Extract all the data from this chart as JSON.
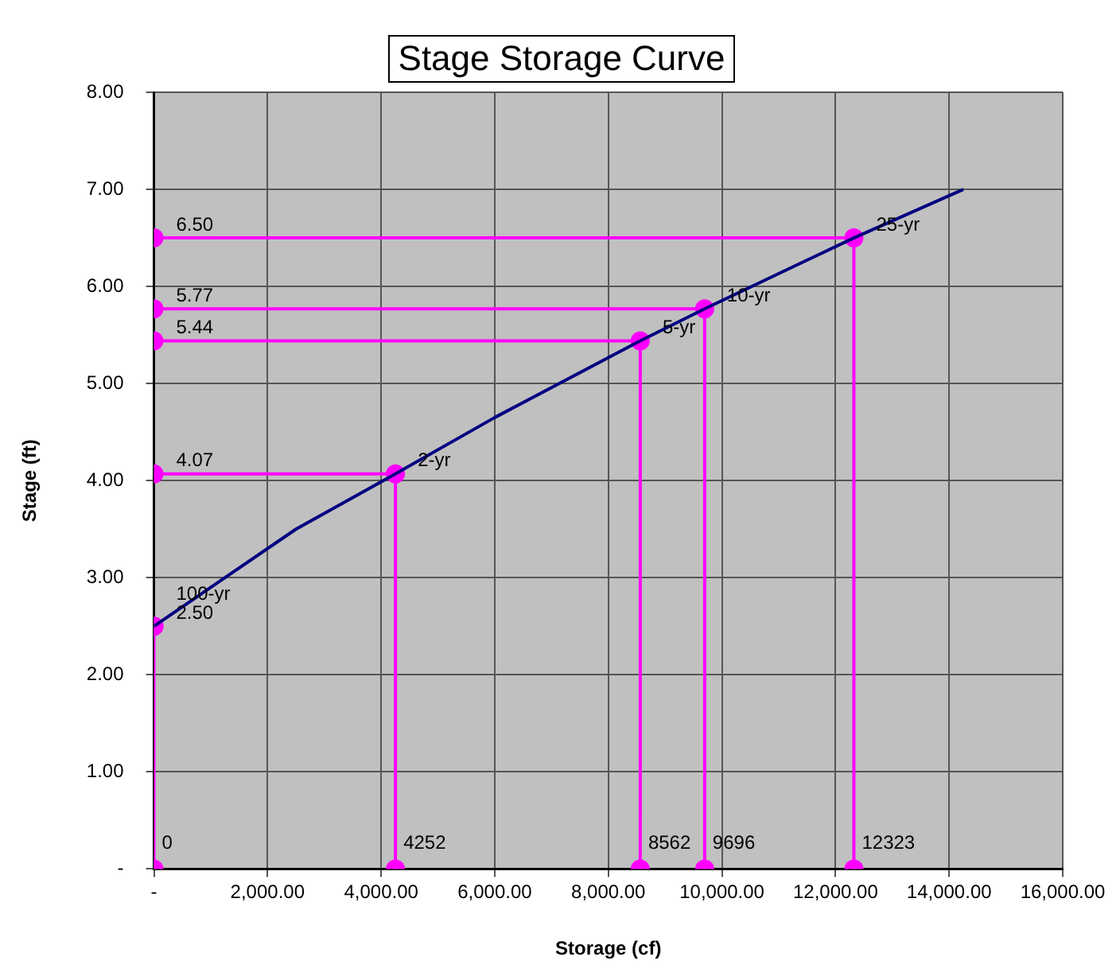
{
  "chart_data": {
    "type": "line",
    "title": "Stage Storage Curve",
    "xlabel": "Storage (cf)",
    "ylabel": "Stage (ft)",
    "xlim": [
      0,
      16000
    ],
    "xticks": [
      {
        "value": 0,
        "label": "-"
      },
      {
        "value": 2000,
        "label": "2,000.00"
      },
      {
        "value": 4000,
        "label": "4,000.00"
      },
      {
        "value": 6000,
        "label": "6,000.00"
      },
      {
        "value": 8000,
        "label": "8,000.00"
      },
      {
        "value": 10000,
        "label": "10,000.00"
      },
      {
        "value": 12000,
        "label": "12,000.00"
      },
      {
        "value": 14000,
        "label": "14,000.00"
      },
      {
        "value": 16000,
        "label": "16,000.00"
      }
    ],
    "ylim": [
      0,
      8
    ],
    "yticks": [
      {
        "value": 0,
        "label": "-"
      },
      {
        "value": 1,
        "label": "1.00"
      },
      {
        "value": 2,
        "label": "2.00"
      },
      {
        "value": 3,
        "label": "3.00"
      },
      {
        "value": 4,
        "label": "4.00"
      },
      {
        "value": 5,
        "label": "5.00"
      },
      {
        "value": 6,
        "label": "6.00"
      },
      {
        "value": 7,
        "label": "7.00"
      },
      {
        "value": 8,
        "label": "8.00"
      }
    ],
    "grid": true,
    "legend": false,
    "series": [
      {
        "color": "#000080",
        "marker": "none",
        "x": [
          0,
          2500,
          4252,
          6000,
          8562,
          9696,
          12323,
          14250
        ],
        "values": [
          2.5,
          3.5,
          4.07,
          4.65,
          5.44,
          5.77,
          6.5,
          7.0
        ]
      },
      {
        "color": "#ff00ff",
        "marker": "circle",
        "x": [
          0,
          0,
          0
        ],
        "values": [
          2.5,
          2.5,
          0
        ]
      },
      {
        "color": "#ff00ff",
        "marker": "circle",
        "x": [
          0,
          4252,
          4252
        ],
        "values": [
          4.07,
          4.07,
          0
        ]
      },
      {
        "color": "#ff00ff",
        "marker": "circle",
        "x": [
          0,
          8562,
          8562
        ],
        "values": [
          5.44,
          5.44,
          0
        ]
      },
      {
        "color": "#ff00ff",
        "marker": "circle",
        "x": [
          0,
          9696,
          9696
        ],
        "values": [
          5.77,
          5.77,
          0
        ]
      },
      {
        "color": "#ff00ff",
        "marker": "circle",
        "x": [
          0,
          12323,
          12323
        ],
        "values": [
          6.5,
          6.5,
          0
        ]
      }
    ],
    "annotations": [
      {
        "text": "2.50",
        "x": 0,
        "y": 2.5
      },
      {
        "text": "100-yr",
        "x": 0,
        "y": 2.5
      },
      {
        "text": "0",
        "x": 0,
        "y": 0
      },
      {
        "text": "4.07",
        "x": 0,
        "y": 4.07
      },
      {
        "text": "2-yr",
        "x": 4252,
        "y": 4.07
      },
      {
        "text": "4252",
        "x": 4252,
        "y": 0
      },
      {
        "text": "5.44",
        "x": 0,
        "y": 5.44
      },
      {
        "text": "5-yr",
        "x": 8562,
        "y": 5.44
      },
      {
        "text": "8562",
        "x": 8562,
        "y": 0
      },
      {
        "text": "5.77",
        "x": 0,
        "y": 5.77
      },
      {
        "text": "10-yr",
        "x": 9696,
        "y": 5.77
      },
      {
        "text": "9696",
        "x": 9696,
        "y": 0
      },
      {
        "text": "6.50",
        "x": 0,
        "y": 6.5
      },
      {
        "text": "25-yr",
        "x": 12323,
        "y": 6.5
      },
      {
        "text": "12323",
        "x": 12323,
        "y": 0
      }
    ]
  }
}
